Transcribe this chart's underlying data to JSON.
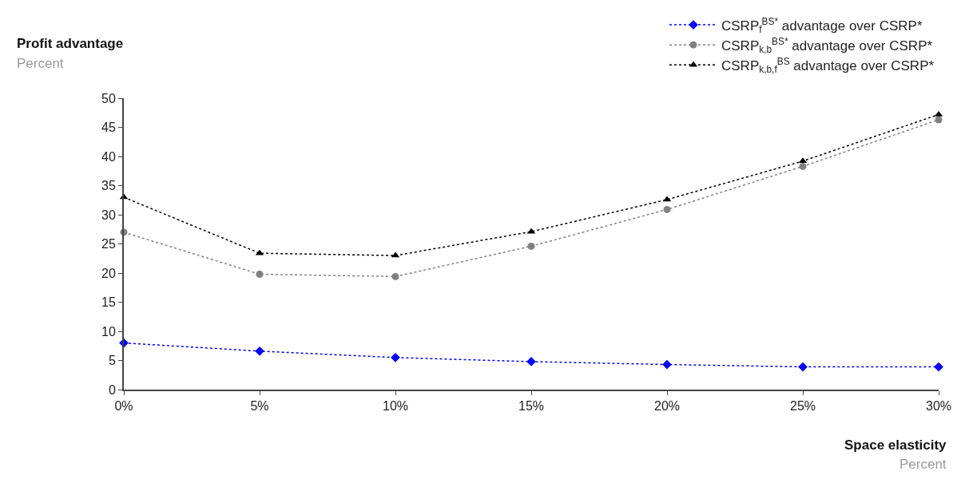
{
  "chart_data": {
    "type": "line",
    "ylabel": "Profit advantage",
    "xlabel": "Space elasticity",
    "annotations": [
      "Percent",
      "Percent"
    ],
    "x": [
      0,
      5,
      10,
      15,
      20,
      25,
      30
    ],
    "xlim": [
      0,
      30
    ],
    "xticks": [
      {
        "value": 0,
        "label": "0%"
      },
      {
        "value": 5,
        "label": "5%"
      },
      {
        "value": 10,
        "label": "10%"
      },
      {
        "value": 15,
        "label": "15%"
      },
      {
        "value": 20,
        "label": "20%"
      },
      {
        "value": 25,
        "label": "25%"
      },
      {
        "value": 30,
        "label": "30%"
      }
    ],
    "ylim": [
      0,
      50
    ],
    "yticks": [
      0,
      5,
      10,
      15,
      20,
      25,
      30,
      35,
      40,
      45,
      50
    ],
    "series": [
      {
        "name": "CSRP$_{f}$$^{BS*}$ advantage over CSRP*",
        "color": "#0000ff",
        "marker": "diamond",
        "values": [
          8.0,
          6.6,
          5.5,
          4.8,
          4.3,
          3.9,
          3.9
        ]
      },
      {
        "name": "CSRP$_{k,b}$$^{BS*}$ advantage over CSRP*",
        "color": "#808080",
        "marker": "circle",
        "values": [
          27.0,
          19.8,
          19.4,
          24.6,
          30.9,
          38.3,
          46.3
        ]
      },
      {
        "name": "CSRP$_{k,b,f}$$^{BS}$ advantage over CSRP*",
        "color": "#000000",
        "marker": "triangle",
        "values": [
          33.0,
          23.4,
          23.0,
          27.1,
          32.6,
          39.2,
          47.2
        ]
      }
    ],
    "line_style": "dotted",
    "legend": "top right"
  }
}
